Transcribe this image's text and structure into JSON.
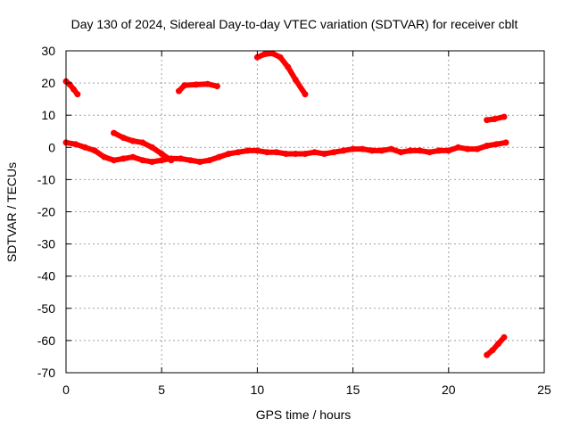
{
  "chart_data": {
    "type": "scatter",
    "title": "Day 130 of 2024, Sidereal Day-to-day VTEC variation (SDTVAR) for receiver cblt",
    "xlabel": "GPS time / hours",
    "ylabel": "SDTVAR / TECUs",
    "xlim": [
      0,
      25
    ],
    "ylim": [
      -70,
      30
    ],
    "xticks": [
      0,
      5,
      10,
      15,
      20,
      25
    ],
    "yticks": [
      -70,
      -60,
      -50,
      -40,
      -30,
      -20,
      -10,
      0,
      10,
      20,
      30
    ],
    "grid": true,
    "legend": "none",
    "series_color": "#ff0000",
    "series": [
      {
        "name": "s1",
        "x": [
          0.0,
          0.2,
          0.4,
          0.6
        ],
        "y": [
          20.5,
          19.5,
          18.0,
          16.5
        ]
      },
      {
        "name": "s2",
        "x": [
          5.9,
          6.2,
          6.8,
          7.4,
          7.9
        ],
        "y": [
          17.5,
          19.3,
          19.5,
          19.7,
          19.0
        ]
      },
      {
        "name": "s3",
        "x": [
          10.0,
          10.4,
          10.8,
          11.2,
          11.6,
          12.0,
          12.5
        ],
        "y": [
          28.0,
          29.0,
          29.2,
          28.0,
          25.0,
          21.0,
          16.5
        ]
      },
      {
        "name": "s4",
        "x": [
          22.0,
          22.4,
          22.9
        ],
        "y": [
          8.5,
          8.8,
          9.5
        ]
      },
      {
        "name": "s5",
        "x": [
          22.0,
          22.3,
          22.6,
          22.9
        ],
        "y": [
          -64.5,
          -63.0,
          -61.0,
          -59.0
        ]
      },
      {
        "name": "s6",
        "x": [
          2.5,
          3.0,
          3.5,
          4.0,
          4.5,
          5.0,
          5.5
        ],
        "y": [
          4.5,
          3.0,
          2.0,
          1.5,
          0.0,
          -2.0,
          -4.0
        ]
      },
      {
        "name": "s7",
        "x": [
          0.0,
          0.5,
          1.0,
          1.5,
          2.0,
          2.5,
          3.0,
          3.5,
          4.0,
          4.5,
          5.0,
          5.5,
          6.0,
          6.5,
          7.0,
          7.5,
          8.0,
          8.5,
          9.0,
          9.5,
          10.0,
          10.5,
          11.0,
          11.5,
          12.0,
          12.5,
          13.0,
          13.5,
          14.0,
          14.5,
          15.0,
          15.5,
          16.0,
          16.5,
          17.0,
          17.5,
          18.0,
          18.5,
          19.0,
          19.5,
          20.0,
          20.5,
          21.0,
          21.5,
          22.0,
          22.5,
          23.0
        ],
        "y": [
          1.5,
          1.0,
          0.0,
          -1.0,
          -3.0,
          -4.0,
          -3.5,
          -3.0,
          -4.0,
          -4.5,
          -4.0,
          -3.5,
          -3.5,
          -4.0,
          -4.5,
          -4.0,
          -3.0,
          -2.0,
          -1.5,
          -1.0,
          -1.0,
          -1.5,
          -1.5,
          -2.0,
          -2.0,
          -2.0,
          -1.5,
          -2.0,
          -1.5,
          -1.0,
          -0.5,
          -0.5,
          -1.0,
          -1.0,
          -0.5,
          -1.5,
          -1.0,
          -1.0,
          -1.5,
          -1.0,
          -1.0,
          0.0,
          -0.5,
          -0.5,
          0.5,
          1.0,
          1.5
        ]
      }
    ]
  }
}
